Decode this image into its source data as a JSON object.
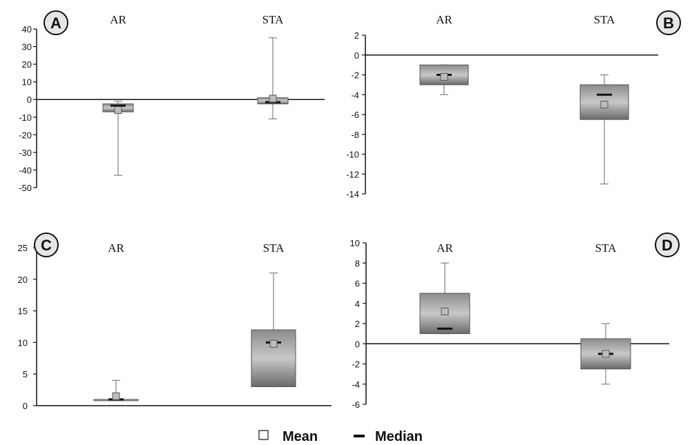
{
  "legend": {
    "mean_label": "Mean",
    "median_label": "Median"
  },
  "colors": {
    "box_light": "#c4c4c4",
    "box_dark": "#6a6a6a",
    "whisker": "#8a8a8a",
    "axis": "#111111",
    "median": "#111111"
  },
  "chart_data": [
    {
      "type": "box",
      "panel": "A",
      "categories": [
        "AR",
        "STA"
      ],
      "ylim": [
        -50,
        40
      ],
      "yticks": [
        40,
        30,
        20,
        10,
        0,
        -10,
        -20,
        -30,
        -40,
        -50
      ],
      "boxes": [
        {
          "name": "AR",
          "whisker_low": -43,
          "q1": -7,
          "median": -3.5,
          "q3": -2.5,
          "whisker_high": -1,
          "mean": -6
        },
        {
          "name": "STA",
          "whisker_low": -11,
          "q1": -2.5,
          "median": -1.5,
          "q3": 1,
          "whisker_high": 35,
          "mean": 0.5
        }
      ]
    },
    {
      "type": "box",
      "panel": "B",
      "categories": [
        "AR",
        "STA"
      ],
      "ylim": [
        -14,
        2
      ],
      "yticks": [
        2,
        0,
        -2,
        -4,
        -6,
        -8,
        -10,
        -12,
        -14
      ],
      "boxes": [
        {
          "name": "AR",
          "whisker_low": -4,
          "q1": -3,
          "median": -2,
          "q3": -1,
          "whisker_high": -1,
          "mean": -2.2
        },
        {
          "name": "STA",
          "whisker_low": -13,
          "q1": -6.5,
          "median": -4,
          "q3": -3,
          "whisker_high": -2,
          "mean": -5
        }
      ]
    },
    {
      "type": "box",
      "panel": "C",
      "categories": [
        "AR",
        "STA"
      ],
      "ylim": [
        0,
        25
      ],
      "yticks": [
        25,
        20,
        15,
        10,
        5,
        0
      ],
      "boxes": [
        {
          "name": "AR",
          "whisker_low": 1,
          "q1": 1,
          "median": 1,
          "q3": 1,
          "whisker_high": 4,
          "mean": 1.5
        },
        {
          "name": "STA",
          "whisker_low": 3,
          "q1": 3,
          "median": 10,
          "q3": 12,
          "whisker_high": 21,
          "mean": 9.8
        }
      ]
    },
    {
      "type": "box",
      "panel": "D",
      "categories": [
        "AR",
        "STA"
      ],
      "ylim": [
        -6,
        10
      ],
      "yticks": [
        10,
        8,
        6,
        4,
        2,
        0,
        -2,
        -4,
        -6
      ],
      "boxes": [
        {
          "name": "AR",
          "whisker_low": 1,
          "q1": 1,
          "median": 1.5,
          "q3": 5,
          "whisker_high": 8,
          "mean": 3.2
        },
        {
          "name": "STA",
          "whisker_low": -4,
          "q1": -2.5,
          "median": -1,
          "q3": 0.5,
          "whisker_high": 2,
          "mean": -1
        }
      ]
    }
  ]
}
